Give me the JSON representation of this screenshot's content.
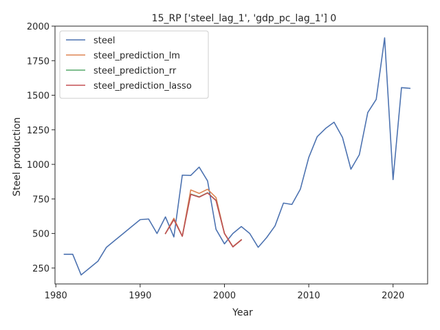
{
  "chart_data": {
    "type": "line",
    "title": "15_RP ['steel_lag_1', 'gdp_pc_lag_1'] 0",
    "xlabel": "Year",
    "ylabel": "Steel production",
    "xlim": [
      1979.9,
      2024.1
    ],
    "ylim": [
      135,
      2000
    ],
    "x_ticks": [
      1980,
      1990,
      2000,
      2010,
      2020
    ],
    "y_ticks": [
      250,
      500,
      750,
      1000,
      1250,
      1500,
      1750,
      2000
    ],
    "grid": false,
    "legend_position": "top-left",
    "colors": {
      "steel": "#4c72b0",
      "steel_prediction_lm": "#dd8452",
      "steel_prediction_rr": "#55a868",
      "steel_prediction_lasso": "#c44e52"
    },
    "series": [
      {
        "name": "steel",
        "x": [
          1981,
          1982,
          1983,
          1984,
          1985,
          1986,
          1987,
          1988,
          1989,
          1990,
          1991,
          1992,
          1993,
          1994,
          1995,
          1996,
          1997,
          1998,
          1999,
          2000,
          2001,
          2002,
          2003,
          2004,
          2005,
          2006,
          2007,
          2008,
          2009,
          2010,
          2011,
          2012,
          2013,
          2014,
          2015,
          2016,
          2017,
          2018,
          2019,
          2020,
          2021,
          2022
        ],
        "values": [
          350,
          350,
          200,
          250,
          300,
          400,
          450,
          500,
          550,
          600,
          605,
          500,
          620,
          475,
          922,
          920,
          980,
          880,
          530,
          425,
          500,
          550,
          500,
          400,
          470,
          555,
          720,
          710,
          820,
          1050,
          1200,
          1260,
          1305,
          1195,
          965,
          1070,
          1375,
          1470,
          1915,
          890,
          1555,
          1550
        ]
      },
      {
        "name": "steel_prediction_lm",
        "x": [
          1993,
          1994,
          1995,
          1996,
          1997,
          1998,
          1999,
          2000,
          2001,
          2002
        ],
        "values": [
          500,
          610,
          480,
          815,
          790,
          820,
          760,
          500,
          405,
          455
        ]
      },
      {
        "name": "steel_prediction_rr",
        "x": [
          1993,
          1994,
          1995,
          1996,
          1997,
          1998,
          1999,
          2000,
          2001,
          2002
        ],
        "values": [
          500,
          600,
          480,
          785,
          765,
          795,
          740,
          500,
          403,
          453
        ]
      },
      {
        "name": "steel_prediction_lasso",
        "x": [
          1993,
          1994,
          1995,
          1996,
          1997,
          1998,
          1999,
          2000,
          2001,
          2002
        ],
        "values": [
          500,
          600,
          480,
          783,
          763,
          793,
          738,
          500,
          403,
          453
        ]
      }
    ]
  }
}
